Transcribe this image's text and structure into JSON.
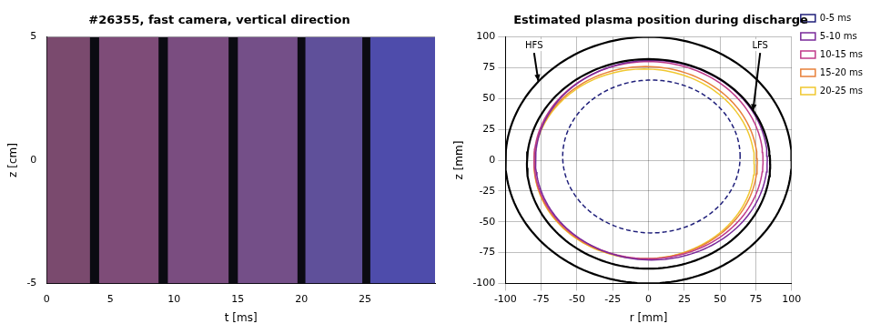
{
  "chart_data": [
    {
      "type": "strips",
      "title": "#26355, fast camera, vertical direction",
      "x_label": "t [ms]",
      "y_label": "z [cm]",
      "xlim": [
        0,
        30.5
      ],
      "xticks": [
        0,
        5,
        10,
        15,
        20,
        25
      ],
      "ylim": [
        -5,
        5
      ],
      "yticks": [
        -5,
        0,
        5
      ],
      "grid": false,
      "frames": [
        {
          "x": [
            0,
            3.4
          ],
          "color": "#7a4a6e"
        },
        {
          "x": [
            4.1,
            8.8
          ],
          "color": "#7e4c78"
        },
        {
          "x": [
            9.5,
            14.3
          ],
          "color": "#7a4d80"
        },
        {
          "x": [
            15.0,
            19.7
          ],
          "color": "#744f88"
        },
        {
          "x": [
            20.3,
            24.8
          ],
          "color": "#5f509a"
        },
        {
          "x": [
            25.4,
            30.5
          ],
          "color": "#4e4cab"
        }
      ]
    },
    {
      "type": "circles",
      "title": "Estimated plasma position during discharge",
      "x_label": "r [mm]",
      "y_label": "z [mm]",
      "xlim": [
        -100,
        100
      ],
      "xticks": [
        -100,
        -75,
        -50,
        -25,
        0,
        25,
        50,
        75,
        100
      ],
      "ylim": [
        -100,
        100
      ],
      "yticks": [
        -100,
        -75,
        -50,
        -25,
        0,
        25,
        50,
        75,
        100
      ],
      "grid": true,
      "legend": "right",
      "series": [
        {
          "color": "#000000",
          "line_style": "solid",
          "center": [
            0,
            0
          ],
          "radius": 100
        },
        {
          "color": "#000000",
          "line_style": "solid",
          "center": [
            0,
            -3
          ],
          "radius": 85
        },
        {
          "name": "0-5 ms",
          "color": "#1f1f7a",
          "line_style": "dashed",
          "center": [
            2,
            3
          ],
          "radius": 62
        },
        {
          "name": "5-10 ms",
          "color": "#7a2a9a",
          "line_style": "solid",
          "center": [
            2,
            0
          ],
          "radius": 81
        },
        {
          "name": "10-15 ms",
          "color": "#c03a8a",
          "line_style": "solid",
          "center": [
            0,
            0
          ],
          "radius": 80
        },
        {
          "name": "15-20 ms",
          "color": "#e8803a",
          "line_style": "solid",
          "center": [
            -2,
            -2
          ],
          "radius": 78
        },
        {
          "name": "20-25 ms",
          "color": "#f0c830",
          "line_style": "solid",
          "center": [
            -3,
            -3
          ],
          "radius": 77
        }
      ],
      "annotations": [
        {
          "text": "HFS",
          "x": -80,
          "y": 93,
          "arrow_to": [
            -77,
            64
          ]
        },
        {
          "text": "LFS",
          "x": 78,
          "y": 93,
          "arrow_to": [
            73,
            40
          ]
        }
      ]
    }
  ]
}
